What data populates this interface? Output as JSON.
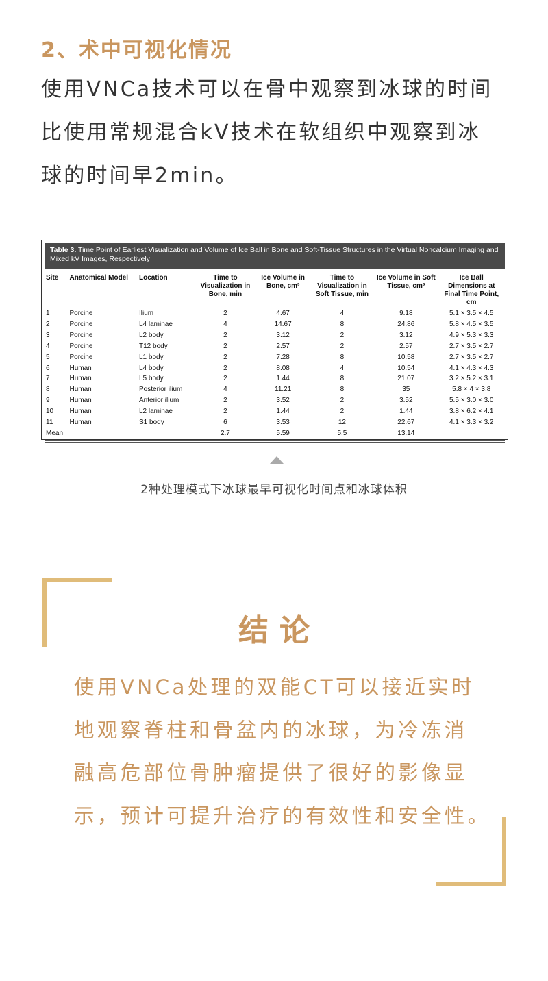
{
  "section": {
    "heading": "2、术中可视化情况",
    "body_lines": [
      "使用VNCa技术可以在骨中观察到冰球的时间",
      "比使用常规混合kV技术在软组织中观察到冰",
      "球的时间早2min。"
    ]
  },
  "table": {
    "caption_label": "Table 3.",
    "caption_text": " Time Point of Earliest Visualization and Volume of Ice Ball in Bone and Soft-Tissue Structures in the Virtual Noncalcium Imaging and Mixed kV Images, Respectively",
    "headers": [
      "Site",
      "Anatomical Model",
      "Location",
      "Time to Visualization in Bone, min",
      "Ice Volume in Bone, cm³",
      "Time to Visualization in Soft Tissue, min",
      "Ice Volume in Soft Tissue, cm³",
      "Ice Ball Dimensions at Final Time Point, cm"
    ],
    "rows": [
      [
        "1",
        "Porcine",
        "Ilium",
        "2",
        "4.67",
        "4",
        "9.18",
        "5.1 × 3.5 × 4.5"
      ],
      [
        "2",
        "Porcine",
        "L4 laminae",
        "4",
        "14.67",
        "8",
        "24.86",
        "5.8 × 4.5 × 3.5"
      ],
      [
        "3",
        "Porcine",
        "L2 body",
        "2",
        "3.12",
        "2",
        "3.12",
        "4.9 × 5.3 × 3.3"
      ],
      [
        "4",
        "Porcine",
        "T12 body",
        "2",
        "2.57",
        "2",
        "2.57",
        "2.7 × 3.5 × 2.7"
      ],
      [
        "5",
        "Porcine",
        "L1 body",
        "2",
        "7.28",
        "8",
        "10.58",
        "2.7 × 3.5 × 2.7"
      ],
      [
        "6",
        "Human",
        "L4 body",
        "2",
        "8.08",
        "4",
        "10.54",
        "4.1 × 4.3 × 4.3"
      ],
      [
        "7",
        "Human",
        "L5 body",
        "2",
        "1.44",
        "8",
        "21.07",
        "3.2 × 5.2 × 3.1"
      ],
      [
        "8",
        "Human",
        "Posterior ilium",
        "4",
        "11.21",
        "8",
        "35",
        "5.8 × 4 × 3.8"
      ],
      [
        "9",
        "Human",
        "Anterior ilium",
        "2",
        "3.52",
        "2",
        "3.52",
        "5.5 × 3.0 × 3.0"
      ],
      [
        "10",
        "Human",
        "L2 laminae",
        "2",
        "1.44",
        "2",
        "1.44",
        "3.8 × 6.2 × 4.1"
      ],
      [
        "11",
        "Human",
        "S1 body",
        "6",
        "3.53",
        "12",
        "22.67",
        "4.1 × 3.3 × 3.2"
      ],
      [
        "Mean",
        "",
        "",
        "2.7",
        "5.59",
        "5.5",
        "13.14",
        ""
      ]
    ],
    "figure_caption": "2种处理模式下冰球最早可视化时间点和冰球体积"
  },
  "conclusion": {
    "title": "结论",
    "body_lines": [
      "使用VNCa处理的双能CT可以接近实时",
      "地观察脊柱和骨盆内的冰球，为冷冻消",
      "融高危部位骨肿瘤提供了很好的影像显",
      "示，预计可提升治疗的有效性和安全性。"
    ]
  },
  "colors": {
    "accent": "#c9965f",
    "frame": "#e0bc7a",
    "table_header_bg": "#4a4a4a"
  }
}
